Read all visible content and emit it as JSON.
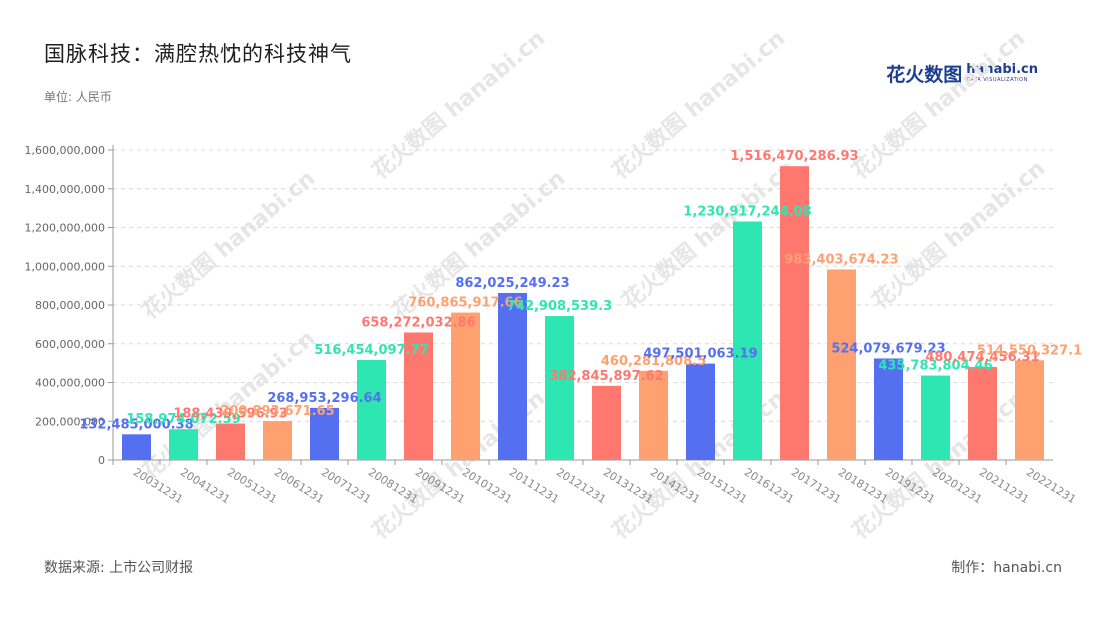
{
  "header": {
    "title": "国脉科技：满腔热忱的科技神气",
    "unit": "单位: 人民币"
  },
  "logo": {
    "cn": "花火数图",
    "en": "hanabi.cn",
    "sub": "DATA VISUALIZATION"
  },
  "footer": {
    "source": "数据来源: 上市公司财报",
    "credit": "制作：hanabi.cn"
  },
  "watermark": "花火数图 hanabi.cn",
  "colors": [
    "#5470f0",
    "#2ee6b1",
    "#ff7870",
    "#ffa070"
  ],
  "chart_data": {
    "type": "bar",
    "title": "国脉科技：满腔热忱的科技神气",
    "xlabel": "",
    "ylabel": "单位: 人民币",
    "ylim": [
      0,
      1600000000
    ],
    "yticks": [
      0,
      200000000,
      400000000,
      600000000,
      800000000,
      1000000000,
      1200000000,
      1400000000,
      1600000000
    ],
    "ytick_labels": [
      "0",
      "200,000,000",
      "400,000,000",
      "600,000,000",
      "800,000,000",
      "1,000,000,000",
      "1,200,000,000",
      "1,400,000,000",
      "1,600,000,000"
    ],
    "grid": true,
    "categories": [
      "20031231",
      "20041231",
      "20051231",
      "20061231",
      "20071231",
      "20081231",
      "20091231",
      "20101231",
      "20111231",
      "20121231",
      "20131231",
      "20141231",
      "20151231",
      "20161231",
      "20171231",
      "20181231",
      "20191231",
      "20201231",
      "20211231",
      "20221231"
    ],
    "values": [
      132485000.38,
      158974072.59,
      188439596.93,
      200893671.65,
      268953296.64,
      516454097.77,
      658272032.86,
      760865917.66,
      862025249.23,
      742908539.3,
      382845897.62,
      460281808.5,
      497501063.19,
      1230917244.08,
      1516470286.93,
      983403674.23,
      524079679.23,
      435783804.46,
      480474456.31,
      514550327.1
    ],
    "labels": [
      "132,485,000.38",
      "158,974,072.59",
      "188,439,596.93",
      "200,893,671.65",
      "268,953,296.64",
      "516,454,097.77",
      "658,272,032.86",
      "760,865,917.66",
      "862,025,249.23",
      "742,908,539.3",
      "382,845,897.62",
      "460,281,808.5",
      "497,501,063.19",
      "1,230,917,244.08",
      "1,516,470,286.93",
      "983,403,674.23",
      "524,079,679.23",
      "435,783,804.46",
      "480,474,456.31",
      "514,550,327.1"
    ]
  }
}
